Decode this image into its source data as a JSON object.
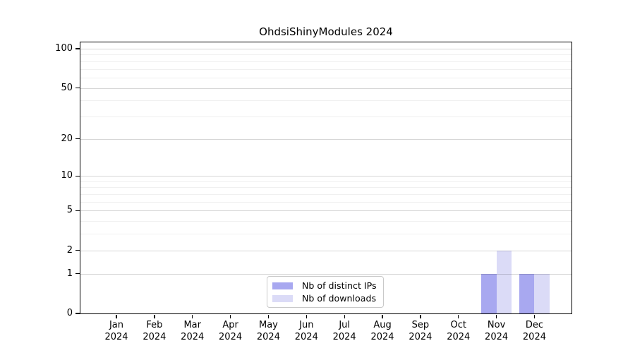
{
  "title": "OhdsiShinyModules 2024",
  "background_color": "#ffffff",
  "chart_data": {
    "type": "bar",
    "title": "OhdsiShinyModules 2024",
    "xlabel": "",
    "ylabel": "",
    "categories": [
      {
        "month": "Jan",
        "year": "2024"
      },
      {
        "month": "Feb",
        "year": "2024"
      },
      {
        "month": "Mar",
        "year": "2024"
      },
      {
        "month": "Apr",
        "year": "2024"
      },
      {
        "month": "May",
        "year": "2024"
      },
      {
        "month": "Jun",
        "year": "2024"
      },
      {
        "month": "Jul",
        "year": "2024"
      },
      {
        "month": "Aug",
        "year": "2024"
      },
      {
        "month": "Sep",
        "year": "2024"
      },
      {
        "month": "Oct",
        "year": "2024"
      },
      {
        "month": "Nov",
        "year": "2024"
      },
      {
        "month": "Dec",
        "year": "2024"
      }
    ],
    "series": [
      {
        "name": "Nb of distinct IPs",
        "color": "#a8a8f0",
        "values": [
          0,
          0,
          0,
          0,
          0,
          0,
          0,
          0,
          0,
          0,
          1,
          1
        ]
      },
      {
        "name": "Nb of downloads",
        "color": "#dbdbf7",
        "values": [
          0,
          0,
          0,
          0,
          0,
          0,
          0,
          0,
          0,
          0,
          2,
          1
        ]
      }
    ],
    "scale": "symlog",
    "ylim": [
      0,
      100
    ],
    "yticks": [
      0,
      1,
      2,
      5,
      10,
      20,
      50,
      100
    ],
    "minor_yticks": [
      3,
      4,
      6,
      7,
      8,
      9,
      30,
      40,
      60,
      70,
      80,
      90
    ],
    "grid": "horizontal",
    "legend_position": "lower center",
    "colors": {
      "major_grid": "rgba(0,0,0,0.16)",
      "minor_grid": "#f0f0f0",
      "spine": "#000000",
      "text": "#000000"
    }
  }
}
